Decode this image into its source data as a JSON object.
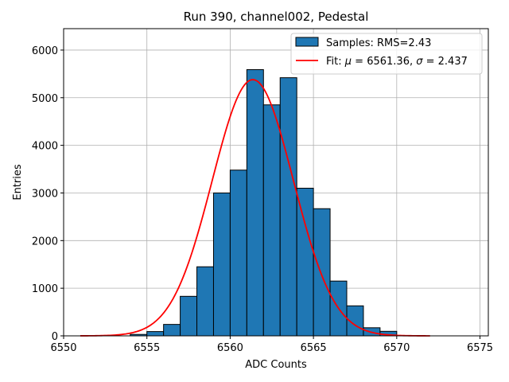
{
  "chart_data": {
    "type": "bar",
    "title": "Run 390, channel002, Pedestal",
    "xlabel": "ADC Counts",
    "ylabel": "Entries",
    "xlim": [
      6550,
      6575.5
    ],
    "ylim": [
      0,
      6450
    ],
    "xticks": [
      6550,
      6555,
      6560,
      6565,
      6570,
      6575
    ],
    "yticks": [
      0,
      1000,
      2000,
      3000,
      4000,
      5000,
      6000
    ],
    "grid": true,
    "legend_position": "top-right",
    "bar_color": "#1f77b4",
    "fit_color": "#ff0000",
    "bin_edges": [
      6554,
      6555,
      6556,
      6557,
      6558,
      6559,
      6560,
      6561,
      6562,
      6563,
      6564,
      6565,
      6566,
      6567,
      6568,
      6569
    ],
    "series": [
      {
        "name": "Samples: RMS=2.43",
        "kind": "histogram",
        "values": [
          30,
          90,
          240,
          830,
          1450,
          3000,
          3480,
          5590,
          4850,
          5420,
          3100,
          2670,
          1150,
          630,
          170,
          95
        ]
      },
      {
        "name": "Fit: μ = 6561.36, σ = 2.437",
        "kind": "line",
        "mu": 6561.36,
        "sigma": 2.437,
        "amplitude": 5380,
        "x_range": [
          6551,
          6572
        ]
      }
    ],
    "legend": {
      "hist_label": "Samples: RMS=2.43",
      "fit_label_prefix": "Fit: ",
      "fit_mu_symbol": "μ",
      "fit_mu_value": " = 6561.36, ",
      "fit_sigma_symbol": "σ",
      "fit_sigma_value": " = 2.437"
    }
  }
}
